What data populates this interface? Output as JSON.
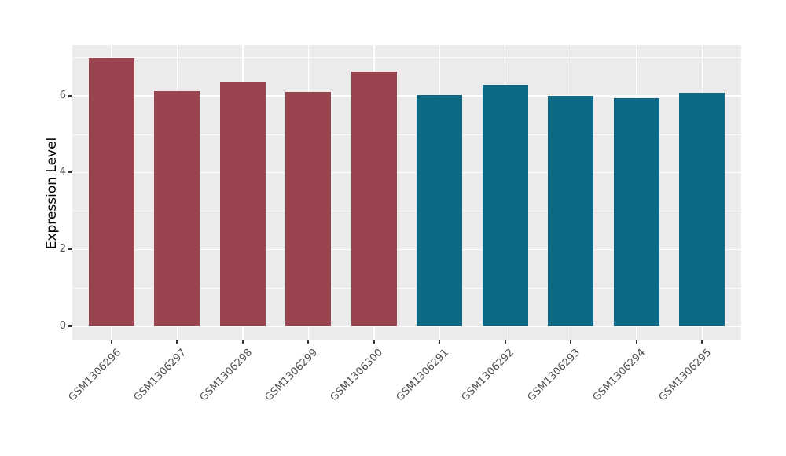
{
  "chart_data": {
    "type": "bar",
    "title": "",
    "xlabel": "",
    "ylabel": "Expression Level",
    "categories": [
      "GSM1306296",
      "GSM1306297",
      "GSM1306298",
      "GSM1306299",
      "GSM1306300",
      "GSM1306291",
      "GSM1306292",
      "GSM1306293",
      "GSM1306294",
      "GSM1306295"
    ],
    "values": [
      6.97,
      6.11,
      6.37,
      6.09,
      6.63,
      6.01,
      6.27,
      6.0,
      5.93,
      6.07
    ],
    "bar_colors": [
      "#9A4450",
      "#9A4450",
      "#9A4450",
      "#9A4450",
      "#9A4450",
      "#0E6987",
      "#0E6987",
      "#0E6987",
      "#0E6987",
      "#0E6987"
    ],
    "group_colors": {
      "left_group": "#9A4450",
      "right_group": "#0E6987"
    },
    "ylim": [
      -0.35,
      7.35
    ],
    "yticks": [
      0,
      2,
      4,
      6
    ],
    "ytick_labels": [
      "0",
      "2",
      "4",
      "6"
    ],
    "minor_yticks": [
      1,
      3,
      5,
      7
    ],
    "grid": "on",
    "legend": "none",
    "style_colors": {
      "panel_bg": "#EBEBEB",
      "grid": "#FFFFFF",
      "tick_text": "#4D4D4D",
      "axis_title_text": "#000000",
      "tick_mark": "#333333",
      "figure_bg": "#FFFFFF"
    }
  }
}
